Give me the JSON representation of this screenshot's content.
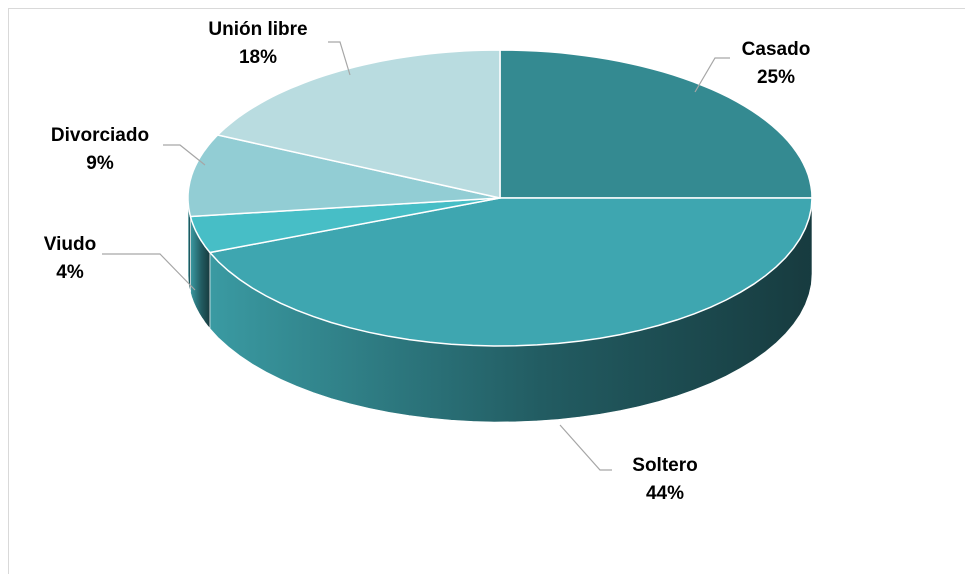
{
  "chart_data": {
    "type": "pie3d",
    "categories": [
      "Casado",
      "Soltero",
      "Viudo",
      "Divorciado",
      "Unión libre"
    ],
    "values": [
      25,
      44,
      4,
      9,
      18
    ],
    "value_labels": [
      "25%",
      "44%",
      "4%",
      "9%",
      "18%"
    ],
    "colors": [
      "#348a91",
      "#3ea6b0",
      "#47bec6",
      "#92cdd4",
      "#b9dce0"
    ]
  }
}
